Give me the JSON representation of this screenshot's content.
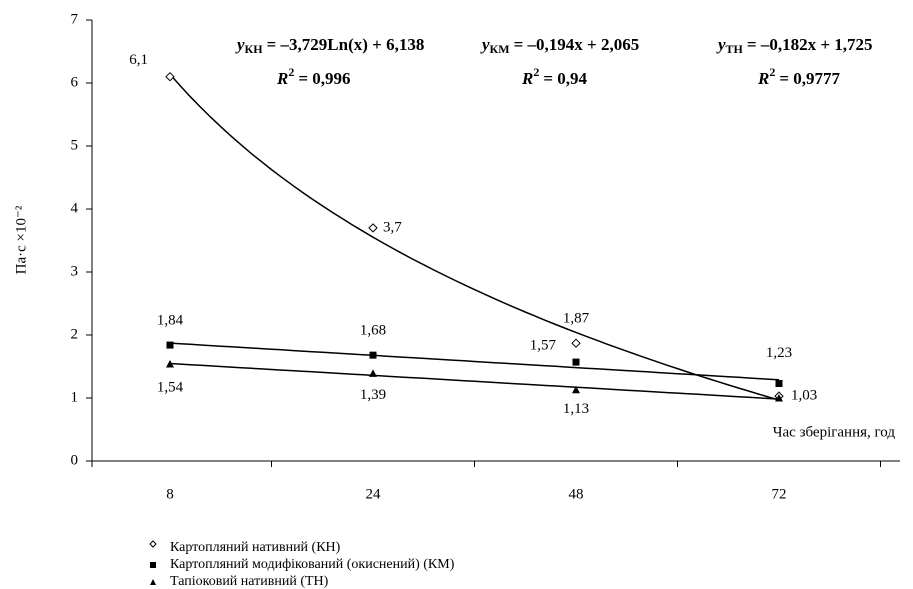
{
  "chart_data": {
    "type": "line",
    "y_label": "Па·с ×10⁻²",
    "x_annotation": "Час зберігання, год",
    "categories": [
      "8",
      "24",
      "48",
      "72"
    ],
    "ylim": [
      0,
      7
    ],
    "yticks": [
      0,
      1,
      2,
      3,
      4,
      5,
      6,
      7
    ],
    "series": [
      {
        "name": "Картопляний нативний (КН)",
        "color": "#000000",
        "marker": "diamond-open",
        "trend": "log",
        "values": [
          6.1,
          3.7,
          1.87,
          1.03
        ],
        "value_labels": [
          "6,1",
          "3,7",
          "1,87",
          "1,03"
        ]
      },
      {
        "name": "Картопляний модифікований (окиснений) (КМ)",
        "color": "#000000",
        "marker": "square",
        "trend": "linear",
        "values": [
          1.84,
          1.68,
          1.57,
          1.23
        ],
        "value_labels": [
          "1,84",
          "1,68",
          "1,57",
          "1,23"
        ]
      },
      {
        "name": "Тапіоковий нативний (ТН)",
        "color": "#000000",
        "marker": "triangle",
        "trend": "linear",
        "values": [
          1.54,
          1.39,
          1.13,
          1.0
        ],
        "value_labels": [
          "1,54",
          "1,39",
          "1,13",
          null
        ]
      }
    ],
    "equations": [
      {
        "y": "y",
        "sub": "КН",
        "rhs": "= –3,729Ln(x) + 6,138",
        "r": "R",
        "sup": "2",
        "r2": "= 0,996"
      },
      {
        "y": "y",
        "sub": "КМ",
        "rhs": "= –0,194x + 2,065",
        "r": "R",
        "sup": "2",
        "r2": "= 0,94"
      },
      {
        "y": "y",
        "sub": "ТН",
        "rhs": "= –0,182x + 1,725",
        "r": "R",
        "sup": "2",
        "r2": "= 0,9777"
      }
    ]
  }
}
